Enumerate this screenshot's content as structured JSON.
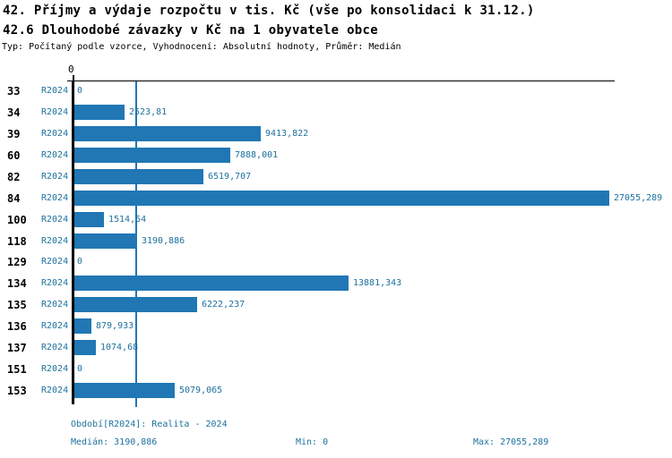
{
  "header": {
    "title_line1": "42. Příjmy a výdaje rozpočtu v tis. Kč (vše po konsolidaci k 31.12.)",
    "title_line2": "42.6 Dlouhodobé závazky v Kč na 1 obyvatele obce",
    "subtitle": "Typ: Počítaný podle vzorce, Vyhodnocení: Absolutní hodnoty, Průměr: Medián"
  },
  "chart_data": {
    "type": "bar",
    "orientation": "horizontal",
    "title": "42.6 Dlouhodobé závazky v Kč na 1 obyvatele obce",
    "series_label": "R2024",
    "axis": {
      "tick_label": "0",
      "xmin": 0,
      "xmax": 27327,
      "grid": false
    },
    "median_value": 3190.886,
    "min_value": 0,
    "max_value": 27055.289,
    "categories": [
      "33",
      "34",
      "39",
      "60",
      "82",
      "84",
      "100",
      "118",
      "129",
      "134",
      "135",
      "136",
      "137",
      "151",
      "153"
    ],
    "values": [
      0,
      2523.81,
      9413.822,
      7888.001,
      6519.707,
      27055.289,
      1514.54,
      3190.886,
      0,
      13881.343,
      6222.237,
      879.933,
      1074.68,
      0,
      5079.065
    ],
    "value_labels": [
      "0",
      "2523,81",
      "9413,822",
      "7888,001",
      "6519,707",
      "27055,289",
      "1514,54",
      "3190,886",
      "0",
      "13881,343",
      "6222,237",
      "879,933",
      "1074,68",
      "0",
      "5079,065"
    ]
  },
  "footer": {
    "period_line": "Období[R2024]: Realita - 2024",
    "median_label": "Medián: 3190,886",
    "min_label": "Min: 0",
    "max_label": "Max: 27055,289"
  },
  "colors": {
    "bar": "#2077b4",
    "accent_text": "#1e719e",
    "axis": "#000000",
    "background": "#ffffff"
  }
}
